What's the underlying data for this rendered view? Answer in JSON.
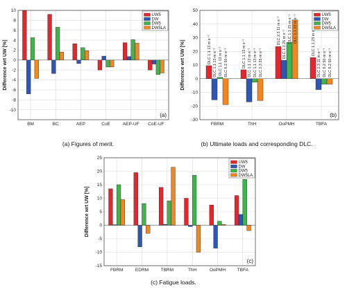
{
  "figure": {
    "captions": {
      "a": "(a) Figures of merit.",
      "b": "(b) Ultimate loads and corresponding DLC.",
      "c": "(c) Fatigue loads."
    }
  },
  "colors": {
    "UW5": "#e8242c",
    "DW": "#2c56b8",
    "DW5": "#3fb54a",
    "DW5LA": "#f4861f"
  },
  "chart_data": [
    {
      "id": "a",
      "type": "bar",
      "panel_label": "(a)",
      "ylabel": "Difference wrt UW [%]",
      "ylim": [
        -12,
        10
      ],
      "yticks": [
        -10,
        -8,
        -6,
        -4,
        -2,
        0,
        2,
        4,
        6,
        8,
        10
      ],
      "categories": [
        "BM",
        "BC",
        "AEP",
        "CoE",
        "AEP-UF",
        "CoE-UF"
      ],
      "legend": [
        "UW5",
        "DW",
        "DW5",
        "DW5LA"
      ],
      "legend_position": "top-right",
      "grid": true,
      "series": [
        {
          "name": "UW5",
          "values": [
            10.0,
            9.2,
            3.3,
            -2.0,
            3.5,
            -2.0
          ]
        },
        {
          "name": "DW",
          "values": [
            -6.8,
            -2.7,
            -0.7,
            0.8,
            0.7,
            -0.8
          ]
        },
        {
          "name": "DW5",
          "values": [
            4.5,
            6.6,
            2.5,
            -1.4,
            4.1,
            -2.9
          ]
        },
        {
          "name": "DW5LA",
          "values": [
            -3.7,
            1.6,
            1.9,
            -1.4,
            3.4,
            -2.6
          ]
        }
      ]
    },
    {
      "id": "b",
      "type": "bar",
      "panel_label": "(b)",
      "ylabel": "Difference wrt UW [%]",
      "ylim": [
        -30,
        50
      ],
      "yticks": [
        -30,
        -20,
        -10,
        0,
        10,
        20,
        30,
        40,
        50
      ],
      "categories": [
        "FBRM",
        "ThH",
        "OoPMH",
        "TBFA"
      ],
      "legend": [
        "UW5",
        "DW",
        "DW5",
        "DW5LA"
      ],
      "legend_position": "top-right",
      "grid": true,
      "series": [
        {
          "name": "UW5",
          "values": [
            9.5,
            6.5,
            23.5,
            15.5
          ]
        },
        {
          "name": "DW",
          "values": [
            -15.5,
            -17.0,
            13.5,
            -8.0
          ]
        },
        {
          "name": "DW5",
          "values": [
            1.0,
            -2.5,
            26.5,
            -4.0
          ]
        },
        {
          "name": "DW5LA",
          "values": [
            -19.0,
            -16.0,
            43.0,
            -4.0
          ]
        }
      ],
      "dlc_labels": [
        [
          "DLC 1.1 13 m s⁻¹",
          "DLC 1.1 13 m s⁻¹",
          "DLC 1.1 13 m s⁻¹",
          "DLC 6.2 50 m s⁻¹"
        ],
        [
          "DLC 1.1 13 m s⁻¹",
          "DLC 1.1 13 m s⁻¹",
          "DLC 1.1 13 m s⁻¹",
          "DLC 2.3 25 m s⁻¹"
        ],
        [
          "DLC 2.3 11 m s⁻¹",
          "DLC 1.1 25 m s⁻¹",
          "DLC 1.1 25 m s⁻¹",
          "DLC 1.1 23 m s⁻¹"
        ],
        [
          "DLC 1.1 23 m s⁻¹",
          "DLC 2.3 11 m s⁻¹",
          "DLC 6.2 50 m s⁻¹",
          "DLC 6.2 50 m s⁻¹"
        ]
      ]
    },
    {
      "id": "c",
      "type": "bar",
      "panel_label": "(c)",
      "ylabel": "Difference wrt UW [%]",
      "ylim": [
        -15,
        25
      ],
      "yticks": [
        -15,
        -10,
        -5,
        0,
        5,
        10,
        15,
        20,
        25
      ],
      "categories": [
        "FBRM",
        "EDRM",
        "TBRM",
        "ThH",
        "OoPMH",
        "TBFA"
      ],
      "legend": [
        "UW5",
        "DW",
        "DW5",
        "DW5LA"
      ],
      "legend_position": "top-right",
      "grid": true,
      "series": [
        {
          "name": "UW5",
          "values": [
            13.5,
            19.5,
            14.0,
            10.0,
            7.5,
            11.0
          ]
        },
        {
          "name": "DW",
          "values": [
            0.2,
            -8.0,
            0.3,
            -0.5,
            -8.5,
            4.0
          ]
        },
        {
          "name": "DW5",
          "values": [
            15.0,
            8.0,
            9.0,
            18.5,
            1.5,
            17.0
          ]
        },
        {
          "name": "DW5LA",
          "values": [
            9.5,
            -3.0,
            21.5,
            -10.0,
            0.3,
            -2.0
          ]
        }
      ]
    }
  ]
}
